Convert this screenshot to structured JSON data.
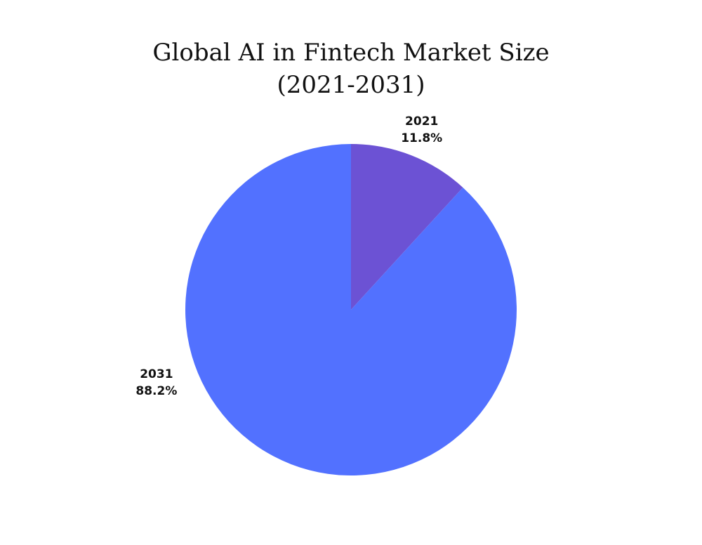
{
  "chart_data": {
    "type": "pie",
    "title": [
      "Global AI in Fintech Market Size",
      "(2021-2031)"
    ],
    "slices": [
      {
        "label": "2021",
        "value": 11.8,
        "display": "11.8%",
        "color": "#6c52d4"
      },
      {
        "label": "2031",
        "value": 88.2,
        "display": "88.2%",
        "color": "#5271ff"
      }
    ],
    "legend": "none"
  }
}
